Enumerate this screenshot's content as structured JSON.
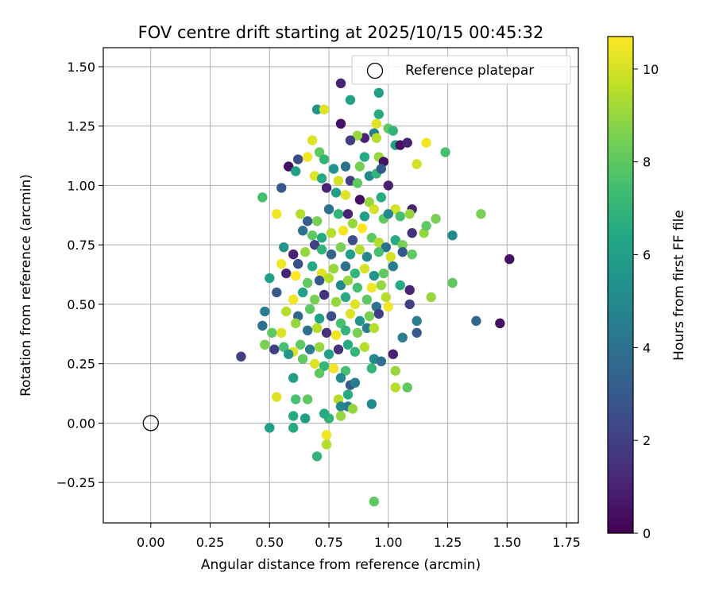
{
  "chart_data": {
    "type": "scatter",
    "title": "FOV centre drift starting at 2025/10/15 00:45:32",
    "xlabel": "Angular distance from reference (arcmin)",
    "ylabel": "Rotation from reference (arcmin)",
    "xlim": [
      -0.2,
      1.8
    ],
    "ylim": [
      -0.42,
      1.58
    ],
    "xticks": [
      0.0,
      0.25,
      0.5,
      0.75,
      1.0,
      1.25,
      1.5,
      1.75
    ],
    "xtick_labels": [
      "0.00",
      "0.25",
      "0.50",
      "0.75",
      "1.00",
      "1.25",
      "1.50",
      "1.75"
    ],
    "yticks": [
      -0.25,
      0.0,
      0.25,
      0.5,
      0.75,
      1.0,
      1.25,
      1.5
    ],
    "ytick_labels": [
      "−0.25",
      "0.00",
      "0.25",
      "0.50",
      "0.75",
      "1.00",
      "1.25",
      "1.50"
    ],
    "grid": true,
    "legend": {
      "position": "top-right",
      "entries": [
        "Reference platepar"
      ]
    },
    "reference_point": {
      "x": 0.0,
      "y": 0.0,
      "marker": "hollow-circle",
      "color": "#000000"
    },
    "colorbar": {
      "label": "Hours from first FF file",
      "colormap": "viridis",
      "range": [
        0,
        10.7
      ],
      "ticks": [
        0,
        2,
        4,
        6,
        8,
        10
      ],
      "tick_labels": [
        "0",
        "2",
        "4",
        "6",
        "8",
        "10"
      ]
    },
    "points": [
      [
        0.8,
        1.43,
        1.0
      ],
      [
        0.96,
        1.39,
        6.0
      ],
      [
        0.7,
        1.32,
        5.5
      ],
      [
        0.73,
        1.32,
        10.2
      ],
      [
        0.84,
        1.36,
        6.0
      ],
      [
        0.96,
        1.3,
        6.5
      ],
      [
        0.8,
        1.26,
        0.5
      ],
      [
        0.95,
        1.26,
        10.2
      ],
      [
        0.94,
        1.22,
        4.5
      ],
      [
        1.0,
        1.24,
        8.0
      ],
      [
        1.02,
        1.23,
        7.0
      ],
      [
        0.9,
        1.2,
        1.0
      ],
      [
        0.87,
        1.21,
        9.0
      ],
      [
        0.84,
        1.19,
        2.0
      ],
      [
        0.95,
        1.2,
        9.5
      ],
      [
        0.68,
        1.19,
        10.2
      ],
      [
        0.71,
        1.14,
        8.0
      ],
      [
        0.62,
        1.11,
        2.5
      ],
      [
        0.66,
        1.12,
        10.5
      ],
      [
        0.73,
        1.11,
        7.0
      ],
      [
        0.58,
        1.08,
        0.5
      ],
      [
        0.61,
        1.06,
        6.0
      ],
      [
        0.82,
        1.08,
        4.0
      ],
      [
        0.88,
        1.08,
        8.5
      ],
      [
        0.9,
        1.12,
        6.5
      ],
      [
        0.96,
        1.12,
        9.0
      ],
      [
        0.98,
        1.1,
        0.5
      ],
      [
        1.03,
        1.17,
        6.0
      ],
      [
        1.05,
        1.17,
        0.5
      ],
      [
        1.08,
        1.18,
        1.0
      ],
      [
        1.16,
        1.18,
        10.5
      ],
      [
        1.12,
        1.09,
        10.0
      ],
      [
        1.24,
        1.14,
        7.5
      ],
      [
        0.69,
        1.04,
        10.2
      ],
      [
        0.72,
        1.03,
        6.5
      ],
      [
        0.77,
        1.07,
        5.5
      ],
      [
        0.79,
        1.02,
        10.0
      ],
      [
        0.84,
        1.02,
        2.0
      ],
      [
        0.87,
        1.01,
        8.0
      ],
      [
        0.92,
        1.04,
        5.0
      ],
      [
        0.95,
        1.05,
        7.0
      ],
      [
        0.97,
        1.07,
        3.0
      ],
      [
        1.0,
        1.0,
        1.0
      ],
      [
        0.55,
        0.99,
        3.0
      ],
      [
        0.47,
        0.95,
        7.5
      ],
      [
        0.74,
        0.99,
        1.0
      ],
      [
        0.78,
        0.97,
        6.0
      ],
      [
        0.82,
        0.96,
        10.2
      ],
      [
        0.88,
        0.94,
        0.5
      ],
      [
        0.92,
        0.93,
        9.0
      ],
      [
        0.97,
        0.95,
        6.5
      ],
      [
        1.03,
        0.9,
        10.0
      ],
      [
        1.1,
        0.9,
        1.0
      ],
      [
        0.53,
        0.88,
        10.5
      ],
      [
        0.63,
        0.88,
        9.5
      ],
      [
        0.66,
        0.85,
        3.0
      ],
      [
        0.7,
        0.85,
        8.5
      ],
      [
        0.75,
        0.9,
        4.0
      ],
      [
        0.79,
        0.88,
        7.0
      ],
      [
        0.83,
        0.88,
        1.0
      ],
      [
        0.85,
        0.84,
        9.0
      ],
      [
        0.9,
        0.87,
        6.0
      ],
      [
        0.94,
        0.9,
        10.0
      ],
      [
        0.98,
        0.86,
        8.0
      ],
      [
        1.0,
        0.88,
        5.0
      ],
      [
        1.05,
        0.87,
        7.5
      ],
      [
        1.09,
        0.88,
        9.0
      ],
      [
        1.2,
        0.86,
        8.5
      ],
      [
        1.39,
        0.88,
        8.5
      ],
      [
        0.64,
        0.81,
        4.0
      ],
      [
        0.68,
        0.79,
        8.0
      ],
      [
        0.72,
        0.78,
        6.5
      ],
      [
        0.76,
        0.8,
        9.5
      ],
      [
        0.81,
        0.81,
        10.5
      ],
      [
        0.85,
        0.77,
        2.5
      ],
      [
        0.89,
        0.82,
        10.7
      ],
      [
        0.93,
        0.78,
        8.0
      ],
      [
        0.96,
        0.76,
        9.5
      ],
      [
        0.99,
        0.74,
        4.0
      ],
      [
        1.03,
        0.77,
        6.5
      ],
      [
        1.06,
        0.75,
        8.5
      ],
      [
        1.1,
        0.8,
        1.5
      ],
      [
        1.15,
        0.8,
        9.0
      ],
      [
        1.16,
        0.83,
        8.0
      ],
      [
        1.27,
        0.79,
        5.0
      ],
      [
        0.56,
        0.74,
        5.5
      ],
      [
        0.6,
        0.71,
        1.0
      ],
      [
        0.65,
        0.72,
        9.0
      ],
      [
        0.69,
        0.75,
        2.0
      ],
      [
        0.72,
        0.73,
        7.0
      ],
      [
        0.76,
        0.71,
        3.5
      ],
      [
        0.8,
        0.74,
        8.5
      ],
      [
        0.84,
        0.71,
        6.0
      ],
      [
        0.88,
        0.73,
        9.5
      ],
      [
        0.91,
        0.7,
        5.0
      ],
      [
        0.96,
        0.72,
        7.5
      ],
      [
        1.01,
        0.7,
        10.0
      ],
      [
        1.06,
        0.72,
        3.0
      ],
      [
        1.1,
        0.71,
        8.0
      ],
      [
        0.55,
        0.67,
        10.5
      ],
      [
        0.62,
        0.67,
        2.5
      ],
      [
        0.68,
        0.66,
        6.5
      ],
      [
        0.72,
        0.63,
        10.2
      ],
      [
        0.77,
        0.65,
        9.0
      ],
      [
        0.82,
        0.66,
        4.0
      ],
      [
        0.86,
        0.63,
        7.0
      ],
      [
        0.9,
        0.65,
        10.0
      ],
      [
        0.94,
        0.62,
        5.5
      ],
      [
        0.98,
        0.63,
        8.0
      ],
      [
        1.02,
        0.66,
        4.5
      ],
      [
        1.51,
        0.69,
        0.5
      ],
      [
        0.5,
        0.61,
        6.0
      ],
      [
        0.57,
        0.63,
        1.0
      ],
      [
        0.61,
        0.62,
        10.7
      ],
      [
        0.66,
        0.59,
        8.0
      ],
      [
        0.71,
        0.6,
        3.0
      ],
      [
        0.75,
        0.61,
        9.5
      ],
      [
        0.8,
        0.58,
        5.0
      ],
      [
        0.83,
        0.6,
        9.0
      ],
      [
        0.87,
        0.57,
        7.5
      ],
      [
        0.93,
        0.57,
        10.5
      ],
      [
        0.97,
        0.58,
        9.0
      ],
      [
        1.05,
        0.58,
        6.5
      ],
      [
        1.09,
        0.56,
        1.0
      ],
      [
        1.27,
        0.59,
        8.0
      ],
      [
        0.53,
        0.55,
        3.0
      ],
      [
        0.6,
        0.52,
        10.5
      ],
      [
        0.64,
        0.55,
        6.0
      ],
      [
        0.69,
        0.52,
        8.5
      ],
      [
        0.73,
        0.54,
        1.5
      ],
      [
        0.78,
        0.51,
        9.0
      ],
      [
        0.82,
        0.53,
        6.5
      ],
      [
        0.86,
        0.5,
        10.2
      ],
      [
        0.91,
        0.52,
        8.0
      ],
      [
        0.95,
        0.49,
        4.0
      ],
      [
        0.99,
        0.53,
        9.5
      ],
      [
        1.09,
        0.5,
        2.0
      ],
      [
        1.18,
        0.53,
        9.0
      ],
      [
        0.48,
        0.47,
        4.5
      ],
      [
        0.57,
        0.47,
        9.5
      ],
      [
        0.62,
        0.45,
        3.5
      ],
      [
        0.67,
        0.48,
        8.0
      ],
      [
        0.71,
        0.44,
        6.0
      ],
      [
        0.76,
        0.45,
        2.5
      ],
      [
        0.8,
        0.42,
        7.5
      ],
      [
        0.84,
        0.46,
        10.2
      ],
      [
        0.88,
        0.43,
        5.5
      ],
      [
        0.92,
        0.45,
        8.5
      ],
      [
        0.96,
        0.46,
        2.0
      ],
      [
        1.0,
        0.49,
        10.5
      ],
      [
        1.12,
        0.43,
        4.5
      ],
      [
        1.37,
        0.43,
        3.5
      ],
      [
        1.47,
        0.42,
        0.5
      ],
      [
        0.47,
        0.41,
        4.0
      ],
      [
        0.51,
        0.38,
        8.0
      ],
      [
        0.55,
        0.38,
        10.2
      ],
      [
        0.61,
        0.42,
        9.0
      ],
      [
        0.66,
        0.39,
        4.0
      ],
      [
        0.7,
        0.4,
        9.5
      ],
      [
        0.74,
        0.38,
        1.5
      ],
      [
        0.78,
        0.37,
        10.5
      ],
      [
        0.82,
        0.39,
        7.0
      ],
      [
        0.87,
        0.38,
        8.5
      ],
      [
        0.91,
        0.4,
        4.5
      ],
      [
        0.94,
        0.4,
        9.5
      ],
      [
        1.06,
        0.36,
        4.5
      ],
      [
        1.12,
        0.38,
        3.0
      ],
      [
        0.48,
        0.33,
        8.5
      ],
      [
        0.52,
        0.31,
        2.0
      ],
      [
        0.56,
        0.32,
        7.5
      ],
      [
        0.6,
        0.3,
        10.2
      ],
      [
        0.63,
        0.33,
        8.0
      ],
      [
        0.67,
        0.31,
        4.5
      ],
      [
        0.71,
        0.32,
        9.0
      ],
      [
        0.75,
        0.29,
        6.0
      ],
      [
        0.79,
        0.31,
        1.5
      ],
      [
        0.83,
        0.33,
        6.5
      ],
      [
        0.86,
        0.3,
        7.0
      ],
      [
        0.9,
        0.32,
        9.5
      ],
      [
        0.94,
        0.27,
        5.0
      ],
      [
        0.97,
        0.26,
        4.0
      ],
      [
        1.02,
        0.29,
        1.0
      ],
      [
        0.38,
        0.28,
        2.0
      ],
      [
        0.58,
        0.29,
        5.5
      ],
      [
        0.64,
        0.27,
        8.0
      ],
      [
        0.69,
        0.25,
        10.2
      ],
      [
        0.73,
        0.24,
        7.0
      ],
      [
        0.77,
        0.23,
        10.5
      ],
      [
        0.82,
        0.22,
        7.5
      ],
      [
        0.93,
        0.23,
        7.0
      ],
      [
        1.03,
        0.22,
        9.0
      ],
      [
        0.6,
        0.19,
        6.0
      ],
      [
        0.71,
        0.21,
        8.0
      ],
      [
        0.8,
        0.19,
        5.0
      ],
      [
        0.84,
        0.16,
        3.0
      ],
      [
        0.86,
        0.17,
        4.5
      ],
      [
        1.03,
        0.15,
        9.5
      ],
      [
        1.08,
        0.15,
        8.0
      ],
      [
        0.53,
        0.11,
        10.2
      ],
      [
        0.61,
        0.1,
        7.5
      ],
      [
        0.66,
        0.1,
        8.0
      ],
      [
        0.79,
        0.1,
        9.5
      ],
      [
        0.83,
        0.12,
        6.5
      ],
      [
        0.8,
        0.07,
        5.0
      ],
      [
        0.83,
        0.07,
        4.5
      ],
      [
        0.85,
        0.06,
        9.0
      ],
      [
        0.93,
        0.08,
        5.0
      ],
      [
        0.6,
        0.03,
        6.5
      ],
      [
        0.65,
        0.02,
        6.0
      ],
      [
        0.75,
        0.02,
        7.0
      ],
      [
        0.73,
        0.04,
        6.5
      ],
      [
        0.8,
        0.03,
        9.0
      ],
      [
        0.5,
        -0.02,
        6.0
      ],
      [
        0.6,
        -0.02,
        6.5
      ],
      [
        0.74,
        -0.05,
        10.5
      ],
      [
        0.74,
        -0.09,
        9.5
      ],
      [
        0.7,
        -0.14,
        7.0
      ],
      [
        0.94,
        -0.33,
        8.0
      ]
    ]
  }
}
